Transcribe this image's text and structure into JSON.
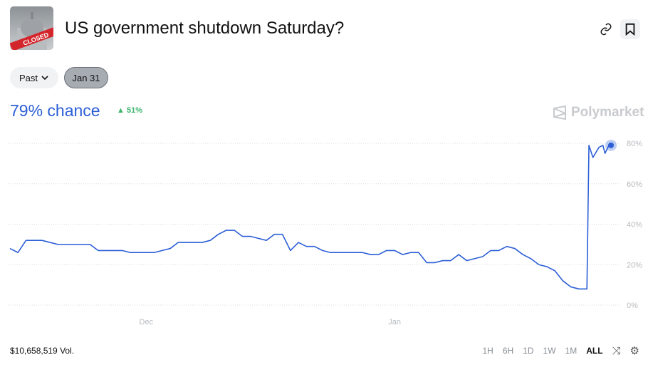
{
  "header": {
    "title": "US government shutdown Saturday?",
    "thumbnail_text": "CLOSED",
    "link_icon": "link-icon",
    "bookmark_icon": "bookmark-icon"
  },
  "filters": {
    "past_label": "Past",
    "selected_date": "Jan 31"
  },
  "summary": {
    "chance": "79% chance",
    "delta": "51%",
    "delta_direction": "up",
    "accent": "#2c5fd6",
    "delta_color": "#3bb56c"
  },
  "brand": "Polymarket",
  "footer": {
    "volume": "$10,658,519 Vol.",
    "ranges": [
      "1H",
      "6H",
      "1D",
      "1W",
      "1M",
      "ALL"
    ],
    "active_range": "ALL"
  },
  "chart_data": {
    "type": "line",
    "x_ticks": [
      "Dec",
      "Jan"
    ],
    "y_ticks": [
      "0%",
      "20%",
      "40%",
      "60%",
      "80%"
    ],
    "ylim": [
      0,
      80
    ],
    "xlim": [
      "Nov 14",
      "Jan 28"
    ],
    "grid": true,
    "line_color": "#2c5fd6",
    "points": [
      [
        "Nov 14",
        28
      ],
      [
        "Nov 15",
        26
      ],
      [
        "Nov 16",
        32
      ],
      [
        "Nov 17",
        32
      ],
      [
        "Nov 18",
        32
      ],
      [
        "Nov 19",
        31
      ],
      [
        "Nov 20",
        30
      ],
      [
        "Nov 21",
        30
      ],
      [
        "Nov 22",
        30
      ],
      [
        "Nov 23",
        30
      ],
      [
        "Nov 24",
        30
      ],
      [
        "Nov 25",
        27
      ],
      [
        "Nov 26",
        27
      ],
      [
        "Nov 27",
        27
      ],
      [
        "Nov 28",
        27
      ],
      [
        "Nov 29",
        26
      ],
      [
        "Nov 30",
        26
      ],
      [
        "Dec 1",
        26
      ],
      [
        "Dec 2",
        26
      ],
      [
        "Dec 3",
        27
      ],
      [
        "Dec 4",
        28
      ],
      [
        "Dec 5",
        31
      ],
      [
        "Dec 6",
        31
      ],
      [
        "Dec 7",
        31
      ],
      [
        "Dec 8",
        31
      ],
      [
        "Dec 9",
        32
      ],
      [
        "Dec 10",
        35
      ],
      [
        "Dec 11",
        37
      ],
      [
        "Dec 12",
        37
      ],
      [
        "Dec 13",
        34
      ],
      [
        "Dec 14",
        34
      ],
      [
        "Dec 15",
        33
      ],
      [
        "Dec 16",
        32
      ],
      [
        "Dec 17",
        35
      ],
      [
        "Dec 18",
        35
      ],
      [
        "Dec 19",
        27
      ],
      [
        "Dec 20",
        31
      ],
      [
        "Dec 21",
        29
      ],
      [
        "Dec 22",
        29
      ],
      [
        "Dec 23",
        27
      ],
      [
        "Dec 24",
        26
      ],
      [
        "Dec 25",
        26
      ],
      [
        "Dec 26",
        26
      ],
      [
        "Dec 27",
        26
      ],
      [
        "Dec 28",
        26
      ],
      [
        "Dec 29",
        25
      ],
      [
        "Dec 30",
        25
      ],
      [
        "Dec 31",
        27
      ],
      [
        "Jan 1",
        27
      ],
      [
        "Jan 2",
        25
      ],
      [
        "Jan 3",
        26
      ],
      [
        "Jan 4",
        26
      ],
      [
        "Jan 5",
        21
      ],
      [
        "Jan 6",
        21
      ],
      [
        "Jan 7",
        22
      ],
      [
        "Jan 8",
        22
      ],
      [
        "Jan 9",
        25
      ],
      [
        "Jan 10",
        22
      ],
      [
        "Jan 11",
        23
      ],
      [
        "Jan 12",
        24
      ],
      [
        "Jan 13",
        27
      ],
      [
        "Jan 14",
        27
      ],
      [
        "Jan 15",
        29
      ],
      [
        "Jan 16",
        28
      ],
      [
        "Jan 17",
        25
      ],
      [
        "Jan 18",
        23
      ],
      [
        "Jan 19",
        20
      ],
      [
        "Jan 20",
        19
      ],
      [
        "Jan 21",
        17
      ],
      [
        "Jan 22",
        12
      ],
      [
        "Jan 23",
        9
      ],
      [
        "Jan 24",
        8
      ],
      [
        "Jan 25",
        8
      ],
      [
        "Jan 25 06:00",
        79
      ],
      [
        "Jan 25 18:00",
        73
      ],
      [
        "Jan 26 12:00",
        78
      ],
      [
        "Jan 27",
        79
      ],
      [
        "Jan 27 06:00",
        75
      ],
      [
        "Jan 27 18:00",
        79
      ],
      [
        "Jan 28",
        79
      ]
    ]
  }
}
